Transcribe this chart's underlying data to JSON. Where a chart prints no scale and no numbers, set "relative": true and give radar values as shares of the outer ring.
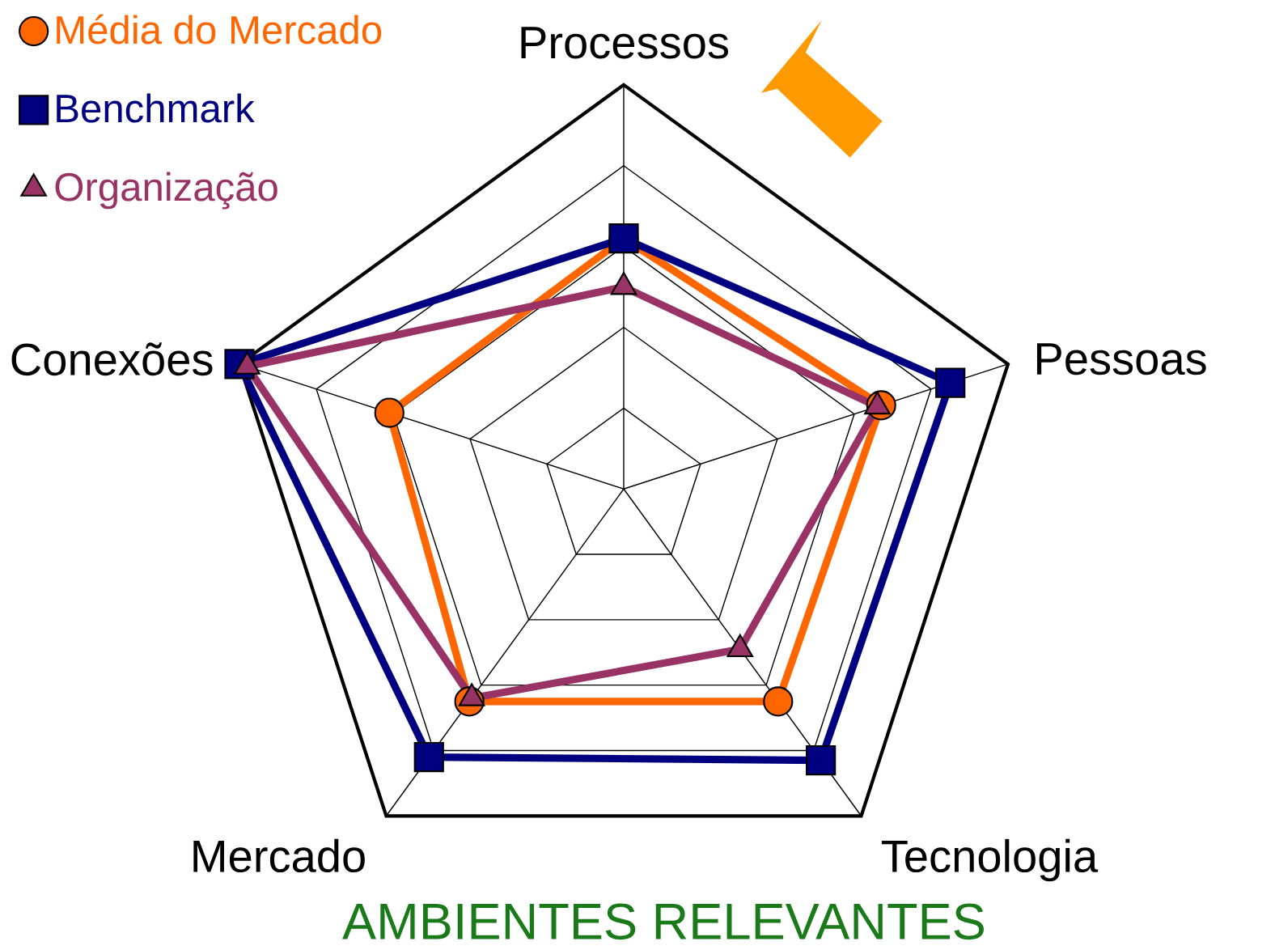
{
  "chart_data": {
    "type": "radar",
    "title": "AMBIENTES RELEVANTES",
    "relative": true,
    "grid": true,
    "legend": "top left",
    "categories": [
      "Processos",
      "Pessoas",
      "Tecnologia",
      "Mercado",
      "Conexões"
    ],
    "series": [
      {
        "name": "Média do Mercado",
        "color": "#ff6600",
        "marker": "circle",
        "values": [
          0.62,
          0.67,
          0.65,
          0.65,
          0.61
        ]
      },
      {
        "name": "Benchmark",
        "color": "#000080",
        "marker": "square",
        "values": [
          0.62,
          0.85,
          0.83,
          0.82,
          1.0
        ]
      },
      {
        "name": "Organização",
        "color": "#993366",
        "marker": "triangle",
        "values": [
          0.5,
          0.66,
          0.49,
          0.64,
          0.98
        ]
      }
    ]
  }
}
